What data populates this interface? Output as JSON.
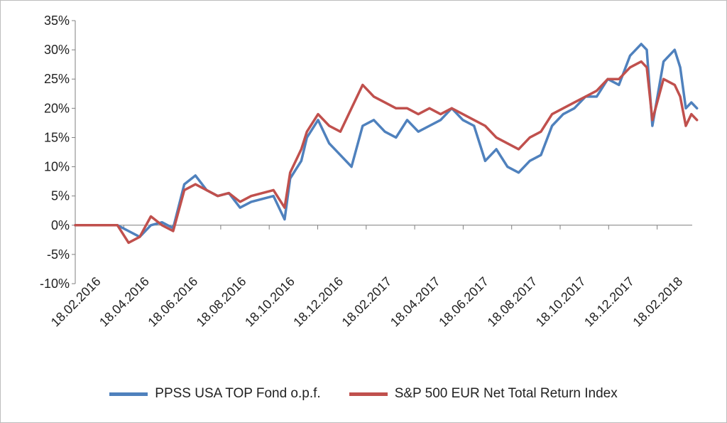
{
  "chart_data": {
    "type": "line",
    "title": "",
    "xlabel": "",
    "ylabel": "",
    "ylim": [
      -0.1,
      0.35
    ],
    "y_ticks": [
      "35%",
      "30%",
      "25%",
      "20%",
      "15%",
      "10%",
      "5%",
      "0%",
      "-5%",
      "-10%"
    ],
    "x_ticks": [
      "18.02.2016",
      "18.04.2016",
      "18.06.2016",
      "18.08.2016",
      "18.10.2016",
      "18.12.2016",
      "18.02.2017",
      "18.04.2017",
      "18.06.2017",
      "18.08.2017",
      "18.10.2017",
      "18.12.2017",
      "18.02.2018"
    ],
    "legend_position": "bottom",
    "series": [
      {
        "name": "PPSS USA TOP Fond o.p.f.",
        "color": "#4F81BD",
        "x": [
          "18.02.2016",
          "18.03.2016",
          "11.04.2016",
          "25.04.2016",
          "09.05.2016",
          "23.05.2016",
          "06.06.2016",
          "20.06.2016",
          "04.07.2016",
          "18.07.2016",
          "01.08.2016",
          "15.08.2016",
          "29.08.2016",
          "12.09.2016",
          "26.09.2016",
          "10.10.2016",
          "24.10.2016",
          "07.11.2016",
          "14.11.2016",
          "28.11.2016",
          "05.12.2016",
          "19.12.2016",
          "02.01.2017",
          "16.01.2017",
          "30.01.2017",
          "13.02.2017",
          "27.02.2017",
          "13.03.2017",
          "27.03.2017",
          "10.04.2017",
          "24.04.2017",
          "08.05.2017",
          "22.05.2017",
          "05.06.2017",
          "19.06.2017",
          "03.07.2017",
          "17.07.2017",
          "31.07.2017",
          "14.08.2017",
          "28.08.2017",
          "11.09.2017",
          "25.09.2017",
          "09.10.2017",
          "23.10.2017",
          "06.11.2017",
          "20.11.2017",
          "04.12.2017",
          "18.12.2017",
          "01.01.2018",
          "15.01.2018",
          "29.01.2018",
          "05.02.2018",
          "12.02.2018",
          "26.02.2018",
          "12.03.2018",
          "19.03.2018",
          "26.03.2018",
          "02.04.2018",
          "09.04.2018"
        ],
        "values": [
          0.0,
          0.0,
          0.0,
          -0.01,
          -0.02,
          0.0,
          0.005,
          -0.005,
          0.07,
          0.085,
          0.06,
          0.05,
          0.055,
          0.03,
          0.04,
          0.045,
          0.05,
          0.01,
          0.08,
          0.11,
          0.15,
          0.18,
          0.14,
          0.12,
          0.1,
          0.17,
          0.18,
          0.16,
          0.15,
          0.18,
          0.16,
          0.17,
          0.18,
          0.2,
          0.18,
          0.17,
          0.11,
          0.13,
          0.1,
          0.09,
          0.11,
          0.12,
          0.17,
          0.19,
          0.2,
          0.22,
          0.22,
          0.25,
          0.24,
          0.29,
          0.31,
          0.3,
          0.17,
          0.28,
          0.3,
          0.27,
          0.2,
          0.21,
          0.2
        ]
      },
      {
        "name": "S&P 500 EUR Net Total Return Index",
        "color": "#C0504D",
        "x": [
          "18.02.2016",
          "18.03.2016",
          "11.04.2016",
          "25.04.2016",
          "09.05.2016",
          "23.05.2016",
          "06.06.2016",
          "20.06.2016",
          "04.07.2016",
          "18.07.2016",
          "01.08.2016",
          "15.08.2016",
          "29.08.2016",
          "12.09.2016",
          "26.09.2016",
          "10.10.2016",
          "24.10.2016",
          "07.11.2016",
          "14.11.2016",
          "28.11.2016",
          "05.12.2016",
          "19.12.2016",
          "02.01.2017",
          "16.01.2017",
          "30.01.2017",
          "13.02.2017",
          "27.02.2017",
          "13.03.2017",
          "27.03.2017",
          "10.04.2017",
          "24.04.2017",
          "08.05.2017",
          "22.05.2017",
          "05.06.2017",
          "19.06.2017",
          "03.07.2017",
          "17.07.2017",
          "31.07.2017",
          "14.08.2017",
          "28.08.2017",
          "11.09.2017",
          "25.09.2017",
          "09.10.2017",
          "23.10.2017",
          "06.11.2017",
          "20.11.2017",
          "04.12.2017",
          "18.12.2017",
          "01.01.2018",
          "15.01.2018",
          "29.01.2018",
          "05.02.2018",
          "12.02.2018",
          "26.02.2018",
          "12.03.2018",
          "19.03.2018",
          "26.03.2018",
          "02.04.2018",
          "09.04.2018"
        ],
        "values": [
          0.0,
          0.0,
          0.0,
          -0.03,
          -0.02,
          0.015,
          0.0,
          -0.01,
          0.06,
          0.07,
          0.06,
          0.05,
          0.055,
          0.04,
          0.05,
          0.055,
          0.06,
          0.03,
          0.09,
          0.13,
          0.16,
          0.19,
          0.17,
          0.16,
          0.2,
          0.24,
          0.22,
          0.21,
          0.2,
          0.2,
          0.19,
          0.2,
          0.19,
          0.2,
          0.19,
          0.18,
          0.17,
          0.15,
          0.14,
          0.13,
          0.15,
          0.16,
          0.19,
          0.2,
          0.21,
          0.22,
          0.23,
          0.25,
          0.25,
          0.27,
          0.28,
          0.27,
          0.18,
          0.25,
          0.24,
          0.22,
          0.17,
          0.19,
          0.18
        ]
      }
    ]
  }
}
